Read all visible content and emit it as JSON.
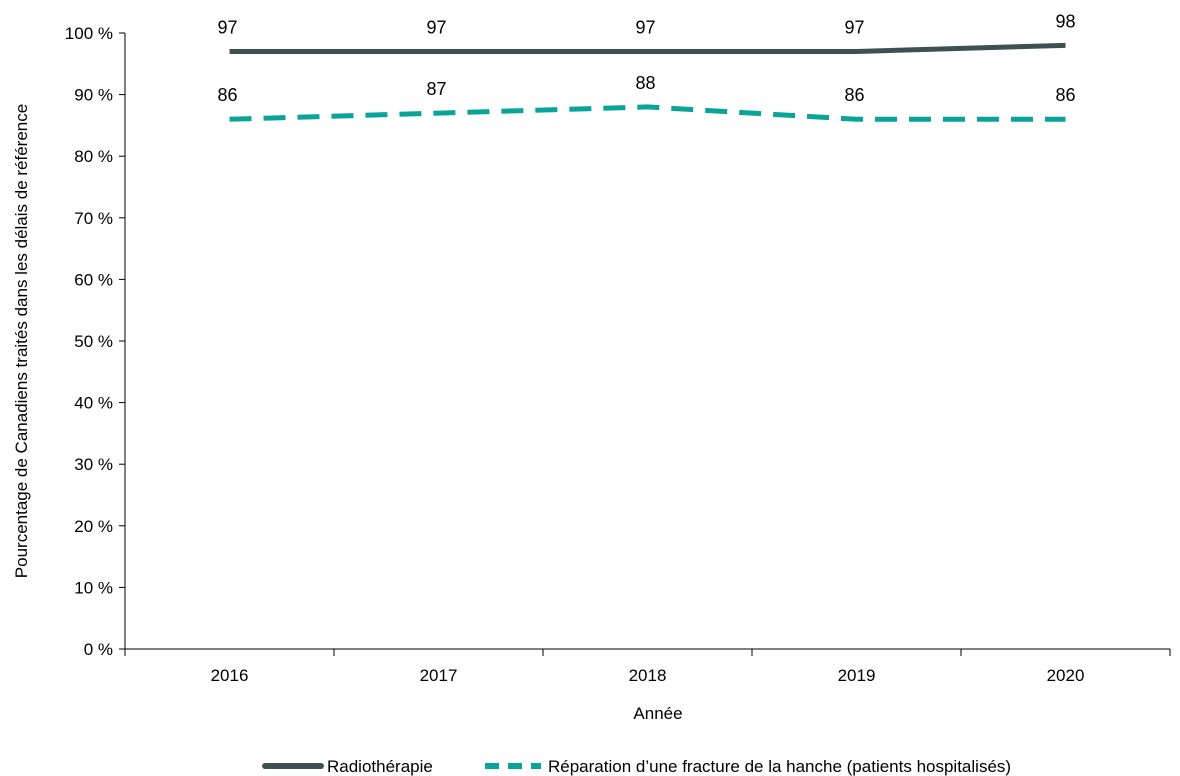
{
  "chart_data": {
    "type": "line",
    "title": "",
    "xlabel": "Année",
    "ylabel": "Pourcentage de Canadiens traités dans les délais de référence",
    "categories": [
      "2016",
      "2017",
      "2018",
      "2019",
      "2020"
    ],
    "ylim": [
      0,
      100
    ],
    "yticks": [
      0,
      10,
      20,
      30,
      40,
      50,
      60,
      70,
      80,
      90,
      100
    ],
    "ytick_labels": [
      "0 %",
      "10 %",
      "20 %",
      "30 %",
      "40 %",
      "50 %",
      "60 %",
      "70 %",
      "80 %",
      "90 %",
      "100 %"
    ],
    "grid": false,
    "legend_position": "bottom",
    "series": [
      {
        "name": "Radiothérapie",
        "values": [
          97,
          97,
          97,
          97,
          98
        ],
        "color": "#3d5152",
        "style": "solid"
      },
      {
        "name": "Réparation d’une fracture de la hanche (patients hospitalisés)",
        "values": [
          86,
          87,
          88,
          86,
          86
        ],
        "color": "#0aa39a",
        "style": "dashed"
      }
    ]
  }
}
